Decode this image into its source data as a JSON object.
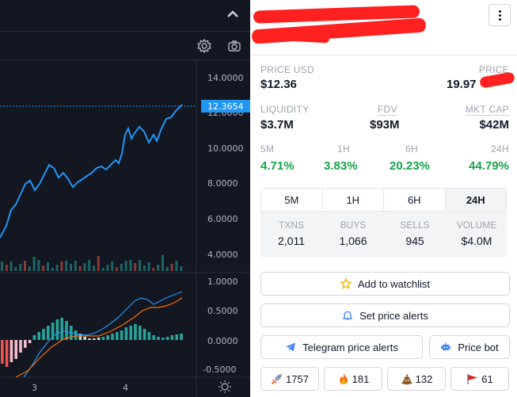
{
  "chart": {
    "price_axis_labels": [
      "14.0000",
      "12.0000",
      "10.0000",
      "8.0000",
      "6.0000",
      "4.0000"
    ],
    "current_price_tag": "12.3654",
    "indicator_axis_labels": [
      "1.0000",
      "0.5000",
      "0.0000",
      "-0.5000"
    ],
    "x_axis_labels": [
      "3",
      "4"
    ],
    "line_color": "#2196f3",
    "up_color": "#26a69a",
    "down_color": "#ef5350"
  },
  "info": {
    "price_usd_label": "PRICE USD",
    "price_usd_value": "$12.36",
    "price_native_label": "PRICE",
    "price_native_value": "19.97",
    "liquidity_label": "LIQUIDITY",
    "liquidity_value": "$3.7M",
    "fdv_label": "FDV",
    "fdv_value": "$93M",
    "mktcap_label": "MKT CAP",
    "mktcap_value": "$42M",
    "changes": [
      {
        "label": "5M",
        "value": "4.71%"
      },
      {
        "label": "1H",
        "value": "3.83%"
      },
      {
        "label": "6H",
        "value": "20.23%"
      },
      {
        "label": "24H",
        "value": "44.79%"
      }
    ],
    "timeframes": [
      "5M",
      "1H",
      "6H",
      "24H"
    ],
    "active_timeframe": "24H",
    "tx_stats": [
      {
        "label": "TXNS",
        "value": "2,011"
      },
      {
        "label": "BUYS",
        "value": "1,066"
      },
      {
        "label": "SELLS",
        "value": "945"
      },
      {
        "label": "VOLUME",
        "value": "$4.0M"
      }
    ],
    "watchlist_label": "Add to watchlist",
    "alerts_label": "Set price alerts",
    "telegram_label": "Telegram price alerts",
    "pricebot_label": "Price bot",
    "reactions": {
      "rocket": "1757",
      "fire": "181",
      "poop": "132",
      "flag": "61"
    }
  }
}
